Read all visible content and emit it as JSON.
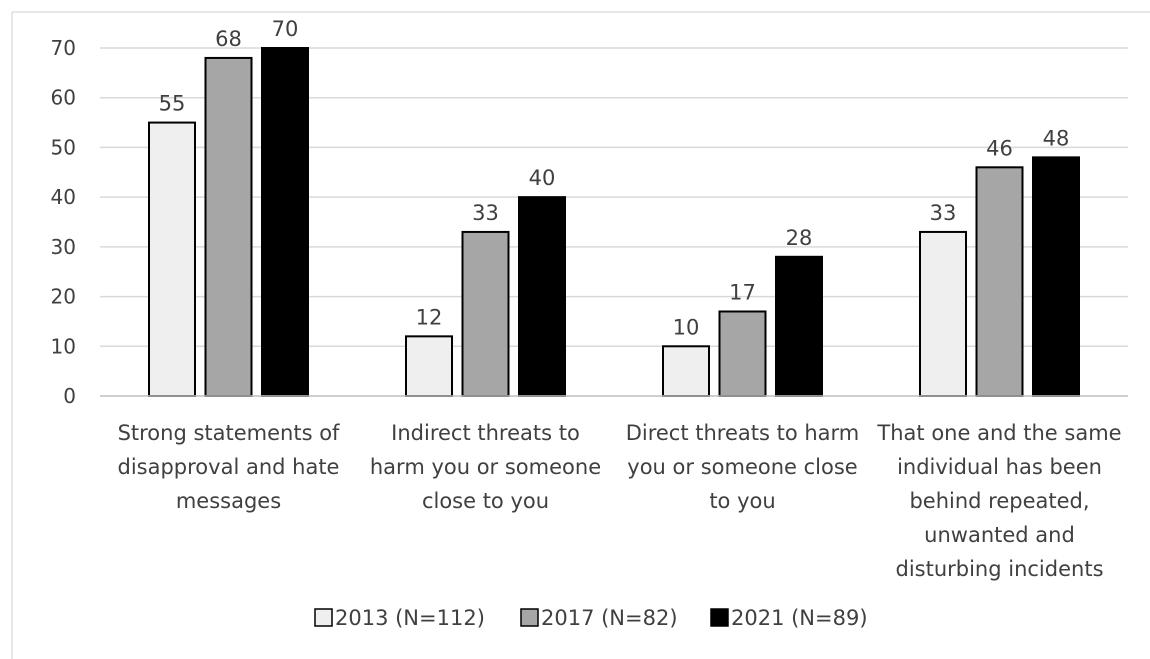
{
  "chart_data": {
    "type": "bar",
    "categories": [
      "Strong statements of disapproval and hate messages",
      "Indirect threats to harm you or someone close to you",
      "Direct threats to harm you or someone close to you",
      "That one and the same individual has been behind repeated, unwanted and disturbing incidents"
    ],
    "category_lines": [
      [
        "Strong statements of",
        "disapproval and hate",
        "messages"
      ],
      [
        "Indirect threats to",
        "harm you or someone",
        "close to you"
      ],
      [
        "Direct threats to harm",
        "you or someone close",
        "to you"
      ],
      [
        "That one and the same",
        "individual has been",
        "behind repeated,",
        "unwanted and",
        "disturbing incidents"
      ]
    ],
    "series": [
      {
        "name": "2013 (N=112)",
        "values": [
          55,
          12,
          10,
          33
        ],
        "color": "#efefef"
      },
      {
        "name": "2017 (N=82)",
        "values": [
          68,
          33,
          17,
          46
        ],
        "color": "#a6a6a6"
      },
      {
        "name": "2021 (N=89)",
        "values": [
          70,
          40,
          28,
          48
        ],
        "color": "#000000"
      }
    ],
    "ylim": [
      0,
      70
    ],
    "yticks": [
      0,
      10,
      20,
      30,
      40,
      50,
      60,
      70
    ],
    "grid": true,
    "data_labels": true,
    "legend": "bottom",
    "title": "",
    "xlabel": "",
    "ylabel": ""
  }
}
